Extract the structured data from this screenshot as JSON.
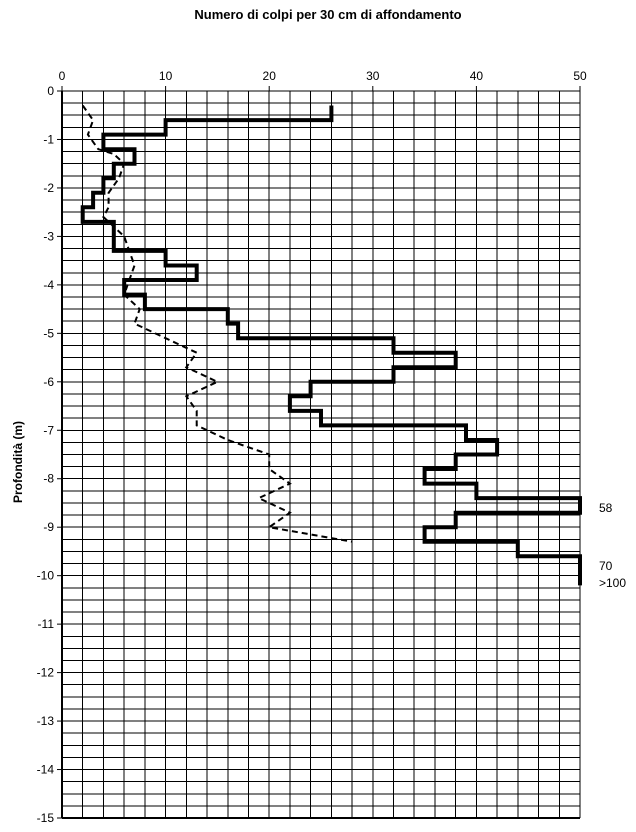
{
  "chart_data": {
    "type": "line",
    "title": "Numero di colpi per 30 cm di affondamento",
    "xlabel": "",
    "ylabel": "Profondità (m)",
    "xlim": [
      0,
      50
    ],
    "ylim": [
      -15,
      0
    ],
    "x_ticks": [
      0,
      10,
      20,
      30,
      40,
      50
    ],
    "y_ticks": [
      0,
      -1,
      -2,
      -3,
      -4,
      -5,
      -6,
      -7,
      -8,
      -9,
      -10,
      -11,
      -12,
      -13,
      -14,
      -15
    ],
    "minor_x_step": 2,
    "minor_y_step": 0.25,
    "grid": true,
    "x_axis_position": "top",
    "series": [
      {
        "style": "solid",
        "color": "#000000",
        "points": [
          [
            26,
            -0.3
          ],
          [
            26,
            -0.6
          ],
          [
            10,
            -0.6
          ],
          [
            10,
            -0.9
          ],
          [
            4,
            -0.9
          ],
          [
            4,
            -1.2
          ],
          [
            7,
            -1.2
          ],
          [
            7,
            -1.5
          ],
          [
            5,
            -1.5
          ],
          [
            5,
            -1.8
          ],
          [
            4,
            -1.8
          ],
          [
            4,
            -2.1
          ],
          [
            3,
            -2.1
          ],
          [
            3,
            -2.4
          ],
          [
            2,
            -2.4
          ],
          [
            2,
            -2.7
          ],
          [
            5,
            -2.7
          ],
          [
            5,
            -3.3
          ],
          [
            10,
            -3.3
          ],
          [
            10,
            -3.6
          ],
          [
            13,
            -3.6
          ],
          [
            13,
            -3.9
          ],
          [
            6,
            -3.9
          ],
          [
            6,
            -4.2
          ],
          [
            8,
            -4.2
          ],
          [
            8,
            -4.5
          ],
          [
            16,
            -4.5
          ],
          [
            16,
            -4.8
          ],
          [
            17,
            -4.8
          ],
          [
            17,
            -5.1
          ],
          [
            32,
            -5.1
          ],
          [
            32,
            -5.4
          ],
          [
            38,
            -5.4
          ],
          [
            38,
            -5.7
          ],
          [
            32,
            -5.7
          ],
          [
            32,
            -6.0
          ],
          [
            24,
            -6.0
          ],
          [
            24,
            -6.3
          ],
          [
            22,
            -6.3
          ],
          [
            22,
            -6.6
          ],
          [
            25,
            -6.6
          ],
          [
            25,
            -6.9
          ],
          [
            39,
            -6.9
          ],
          [
            39,
            -7.2
          ],
          [
            42,
            -7.2
          ],
          [
            42,
            -7.5
          ],
          [
            38,
            -7.5
          ],
          [
            38,
            -7.8
          ],
          [
            35,
            -7.8
          ],
          [
            35,
            -8.1
          ],
          [
            40,
            -8.1
          ],
          [
            40,
            -8.4
          ],
          [
            50,
            -8.4
          ],
          [
            50,
            -8.7
          ],
          [
            38,
            -8.7
          ],
          [
            38,
            -9.0
          ],
          [
            35,
            -9.0
          ],
          [
            35,
            -9.3
          ],
          [
            44,
            -9.3
          ],
          [
            44,
            -9.6
          ],
          [
            50,
            -9.6
          ],
          [
            50,
            -10.2
          ]
        ]
      },
      {
        "style": "dashed",
        "color": "#000000",
        "points": [
          [
            2,
            -0.3
          ],
          [
            3,
            -0.6
          ],
          [
            2.5,
            -0.9
          ],
          [
            3.5,
            -1.2
          ],
          [
            5,
            -1.3
          ],
          [
            6,
            -1.5
          ],
          [
            5.5,
            -1.8
          ],
          [
            4.5,
            -2.1
          ],
          [
            4.5,
            -2.4
          ],
          [
            4,
            -2.6
          ],
          [
            5,
            -2.8
          ],
          [
            6,
            -3.0
          ],
          [
            6.5,
            -3.3
          ],
          [
            7,
            -3.6
          ],
          [
            6.5,
            -3.9
          ],
          [
            6,
            -4.2
          ],
          [
            7.5,
            -4.5
          ],
          [
            7,
            -4.8
          ],
          [
            10,
            -5.1
          ],
          [
            13,
            -5.4
          ],
          [
            12,
            -5.7
          ],
          [
            15,
            -6.0
          ],
          [
            12,
            -6.3
          ],
          [
            13,
            -6.6
          ],
          [
            13,
            -6.9
          ],
          [
            16,
            -7.2
          ],
          [
            20,
            -7.5
          ],
          [
            20,
            -7.8
          ],
          [
            22,
            -8.1
          ],
          [
            19,
            -8.4
          ],
          [
            22,
            -8.7
          ],
          [
            20,
            -9.0
          ],
          [
            28,
            -9.3
          ]
        ]
      }
    ],
    "annotations": [
      {
        "text": "58",
        "x": 50,
        "y": -8.6
      },
      {
        "text": "70",
        "x": 50,
        "y": -9.8
      },
      {
        "text": ">100",
        "x": 50,
        "y": -10.15
      }
    ]
  }
}
